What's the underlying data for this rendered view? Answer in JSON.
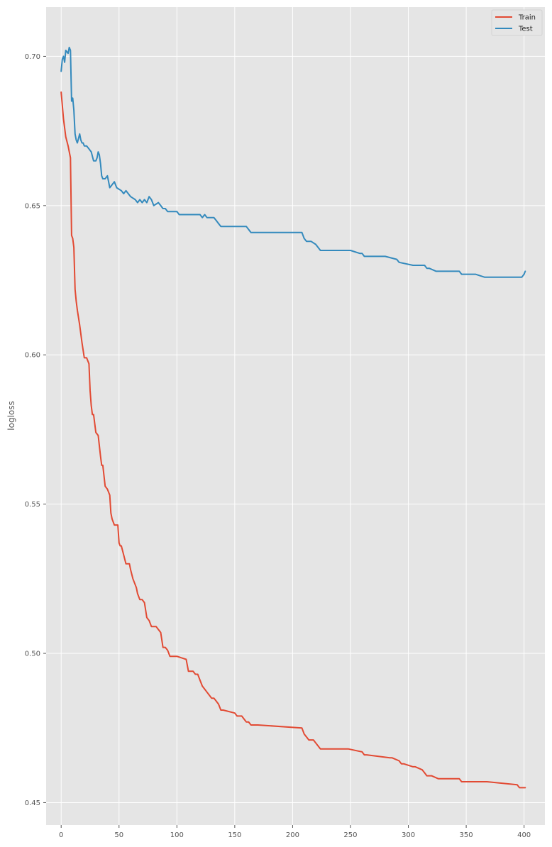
{
  "chart_data": {
    "type": "line",
    "xlabel": "",
    "ylabel": "logloss",
    "xlim": [
      -13,
      418
    ],
    "ylim": [
      0.4425,
      0.7165
    ],
    "xticks": [
      0,
      50,
      100,
      150,
      200,
      250,
      300,
      350,
      400
    ],
    "yticks": [
      0.45,
      0.5,
      0.55,
      0.6,
      0.65,
      0.7
    ],
    "ytick_labels": [
      "0.45",
      "0.50",
      "0.55",
      "0.60",
      "0.65",
      "0.70"
    ],
    "grid": true,
    "legend_position": "top-right",
    "series": [
      {
        "name": "Train",
        "color": "#E24A33",
        "x": [
          0,
          2,
          3,
          4,
          6,
          8,
          9,
          10,
          11,
          12,
          13,
          14,
          16,
          18,
          20,
          22,
          24,
          25,
          26,
          27,
          28,
          30,
          32,
          34,
          35,
          36,
          38,
          40,
          42,
          43,
          44,
          46,
          48,
          49,
          50,
          51,
          52,
          54,
          56,
          58,
          59,
          60,
          62,
          64,
          65,
          66,
          68,
          70,
          72,
          74,
          76,
          78,
          80,
          82,
          84,
          86,
          88,
          90,
          92,
          94,
          96,
          100,
          108,
          110,
          114,
          116,
          118,
          120,
          122,
          124,
          126,
          128,
          130,
          132,
          134,
          136,
          138,
          140,
          150,
          152,
          156,
          160,
          162,
          164,
          166,
          170,
          208,
          210,
          212,
          214,
          218,
          220,
          222,
          224,
          248,
          260,
          262,
          264,
          284,
          286,
          292,
          294,
          296,
          304,
          306,
          312,
          314,
          316,
          318,
          320,
          326,
          328,
          344,
          346,
          356,
          358,
          366,
          368,
          394,
          396,
          400,
          401
        ],
        "y": [
          0.688,
          0.679,
          0.676,
          0.673,
          0.67,
          0.666,
          0.64,
          0.639,
          0.636,
          0.622,
          0.618,
          0.615,
          0.61,
          0.604,
          0.599,
          0.599,
          0.597,
          0.588,
          0.583,
          0.58,
          0.58,
          0.574,
          0.573,
          0.566,
          0.563,
          0.563,
          0.556,
          0.555,
          0.553,
          0.547,
          0.545,
          0.543,
          0.543,
          0.543,
          0.537,
          0.536,
          0.536,
          0.533,
          0.53,
          0.53,
          0.53,
          0.528,
          0.525,
          0.523,
          0.522,
          0.52,
          0.518,
          0.518,
          0.517,
          0.512,
          0.511,
          0.509,
          0.509,
          0.509,
          0.508,
          0.507,
          0.502,
          0.502,
          0.501,
          0.499,
          0.499,
          0.499,
          0.498,
          0.494,
          0.494,
          0.493,
          0.493,
          0.491,
          0.489,
          0.488,
          0.487,
          0.486,
          0.485,
          0.485,
          0.484,
          0.483,
          0.481,
          0.481,
          0.48,
          0.479,
          0.479,
          0.477,
          0.477,
          0.476,
          0.476,
          0.476,
          0.475,
          0.473,
          0.472,
          0.471,
          0.471,
          0.47,
          0.469,
          0.468,
          0.468,
          0.467,
          0.466,
          0.466,
          0.465,
          0.465,
          0.464,
          0.463,
          0.463,
          0.462,
          0.462,
          0.461,
          0.46,
          0.459,
          0.459,
          0.459,
          0.458,
          0.458,
          0.458,
          0.457,
          0.457,
          0.457,
          0.457,
          0.457,
          0.456,
          0.455,
          0.455,
          0.455
        ]
      },
      {
        "name": "Test",
        "color": "#348ABD",
        "x": [
          0,
          1,
          2,
          3,
          4,
          6,
          7,
          8,
          9,
          10,
          11,
          12,
          13,
          14,
          16,
          17,
          18,
          19,
          20,
          22,
          24,
          26,
          28,
          30,
          31,
          32,
          33,
          34,
          35,
          36,
          38,
          40,
          42,
          44,
          46,
          48,
          52,
          54,
          56,
          60,
          64,
          66,
          68,
          70,
          72,
          74,
          76,
          78,
          80,
          84,
          86,
          88,
          90,
          92,
          94,
          96,
          100,
          102,
          110,
          112,
          120,
          122,
          124,
          126,
          128,
          130,
          132,
          134,
          136,
          138,
          140,
          144,
          146,
          152,
          160,
          162,
          164,
          166,
          170,
          200,
          208,
          210,
          212,
          216,
          220,
          222,
          224,
          248,
          250,
          258,
          260,
          262,
          278,
          280,
          290,
          292,
          304,
          314,
          316,
          318,
          324,
          326,
          344,
          346,
          356,
          358,
          366,
          368,
          380,
          394,
          398,
          400,
          401
        ],
        "y": [
          0.695,
          0.699,
          0.7,
          0.698,
          0.702,
          0.701,
          0.703,
          0.702,
          0.685,
          0.686,
          0.682,
          0.674,
          0.672,
          0.671,
          0.674,
          0.672,
          0.671,
          0.671,
          0.67,
          0.67,
          0.669,
          0.668,
          0.665,
          0.665,
          0.666,
          0.668,
          0.667,
          0.664,
          0.66,
          0.659,
          0.659,
          0.66,
          0.656,
          0.657,
          0.658,
          0.656,
          0.655,
          0.654,
          0.655,
          0.653,
          0.652,
          0.651,
          0.652,
          0.651,
          0.652,
          0.651,
          0.653,
          0.652,
          0.65,
          0.651,
          0.65,
          0.649,
          0.649,
          0.648,
          0.648,
          0.648,
          0.648,
          0.647,
          0.647,
          0.647,
          0.647,
          0.646,
          0.647,
          0.646,
          0.646,
          0.646,
          0.646,
          0.645,
          0.644,
          0.643,
          0.643,
          0.643,
          0.643,
          0.643,
          0.643,
          0.642,
          0.641,
          0.641,
          0.641,
          0.641,
          0.641,
          0.639,
          0.638,
          0.638,
          0.637,
          0.636,
          0.635,
          0.635,
          0.635,
          0.634,
          0.634,
          0.633,
          0.633,
          0.633,
          0.632,
          0.631,
          0.63,
          0.63,
          0.629,
          0.629,
          0.628,
          0.628,
          0.628,
          0.627,
          0.627,
          0.627,
          0.626,
          0.626,
          0.626,
          0.626,
          0.626,
          0.627,
          0.628
        ]
      }
    ]
  }
}
